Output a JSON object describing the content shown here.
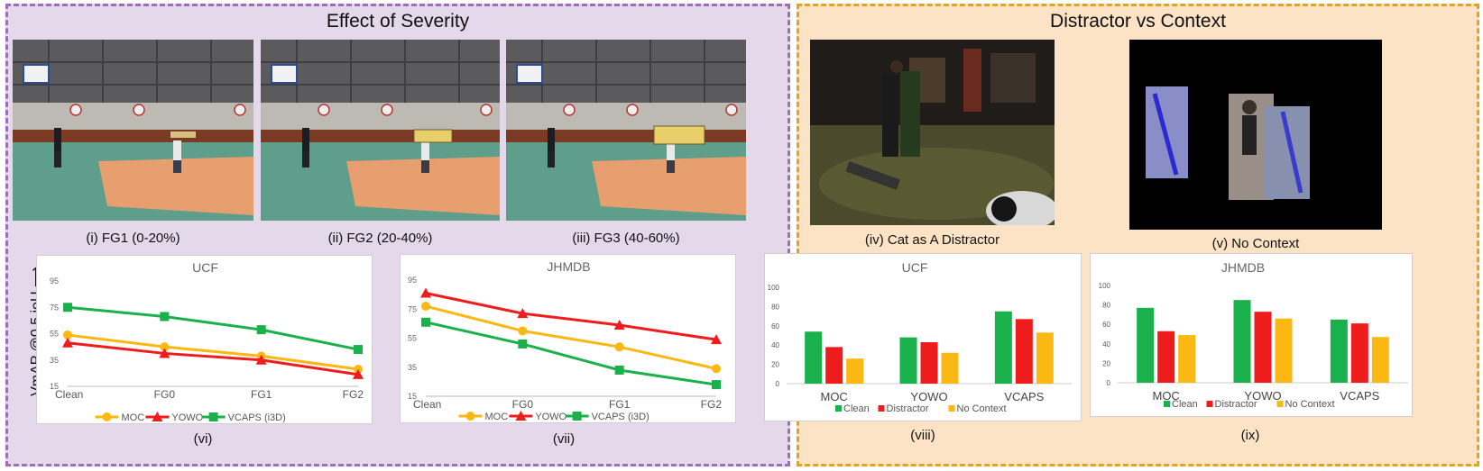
{
  "left_panel": {
    "title": "Effect of Severity",
    "images": [
      {
        "caption": "(i) FG1 (0-20%)"
      },
      {
        "caption": "(ii) FG2 (20-40%)"
      },
      {
        "caption": "(iii) FG3 (40-60%)"
      }
    ],
    "y_axis_label": "VmAP @0.5 ioU ⟶"
  },
  "right_panel": {
    "title": "Distractor vs Context",
    "images": [
      {
        "caption": "(iv) Cat as A Distractor"
      },
      {
        "caption": "(v) No Context"
      }
    ]
  },
  "colors": {
    "MOC": "#fbb812",
    "YOWO": "#ee1c1c",
    "VCAPS": "#1ab04b",
    "Clean": "#1ab04b",
    "Distractor": "#ee1c1c",
    "No Context": "#fbb812"
  },
  "chart_data": [
    {
      "id": "vi",
      "type": "line",
      "title": "UCF",
      "caption": "(vi)",
      "categories": [
        "Clean",
        "FG0",
        "FG1",
        "FG2"
      ],
      "yticks": [
        15,
        35,
        55,
        75,
        95
      ],
      "ylim": [
        15,
        95
      ],
      "series": [
        {
          "name": "MOC",
          "values": [
            54,
            45,
            38,
            28
          ]
        },
        {
          "name": "YOWO",
          "values": [
            48,
            40,
            35,
            24
          ]
        },
        {
          "name": "VCAPS (i3D)",
          "values": [
            75,
            68,
            58,
            43
          ]
        }
      ],
      "legend": "bottom"
    },
    {
      "id": "vii",
      "type": "line",
      "title": "JHMDB",
      "caption": "(vii)",
      "categories": [
        "Clean",
        "FG0",
        "FG1",
        "FG2"
      ],
      "yticks": [
        15,
        35,
        55,
        75,
        95
      ],
      "ylim": [
        15,
        95
      ],
      "series": [
        {
          "name": "MOC",
          "values": [
            77,
            60,
            49,
            34
          ]
        },
        {
          "name": "YOWO",
          "values": [
            86,
            72,
            64,
            54
          ]
        },
        {
          "name": "VCAPS (i3D)",
          "values": [
            66,
            51,
            33,
            23
          ]
        }
      ],
      "legend": "bottom"
    },
    {
      "id": "viii",
      "type": "bar",
      "title": "UCF",
      "caption": "(viii)",
      "categories": [
        "MOC",
        "YOWO",
        "VCAPS"
      ],
      "yticks": [
        0,
        20,
        40,
        60,
        80,
        100
      ],
      "ylim": [
        0,
        100
      ],
      "series": [
        {
          "name": "Clean",
          "values": [
            54,
            48,
            75
          ]
        },
        {
          "name": "Distractor",
          "values": [
            38,
            43,
            67
          ]
        },
        {
          "name": "No Context",
          "values": [
            26,
            32,
            53
          ]
        }
      ],
      "legend": "bottom"
    },
    {
      "id": "ix",
      "type": "bar",
      "title": "JHMDB",
      "caption": "(ix)",
      "categories": [
        "MOC",
        "YOWO",
        "VCAPS"
      ],
      "yticks": [
        0,
        20,
        40,
        60,
        80,
        100
      ],
      "ylim": [
        0,
        100
      ],
      "series": [
        {
          "name": "Clean",
          "values": [
            77,
            85,
            65
          ]
        },
        {
          "name": "Distractor",
          "values": [
            53,
            73,
            61
          ]
        },
        {
          "name": "No Context",
          "values": [
            49,
            66,
            47
          ]
        }
      ],
      "legend": "bottom"
    }
  ]
}
